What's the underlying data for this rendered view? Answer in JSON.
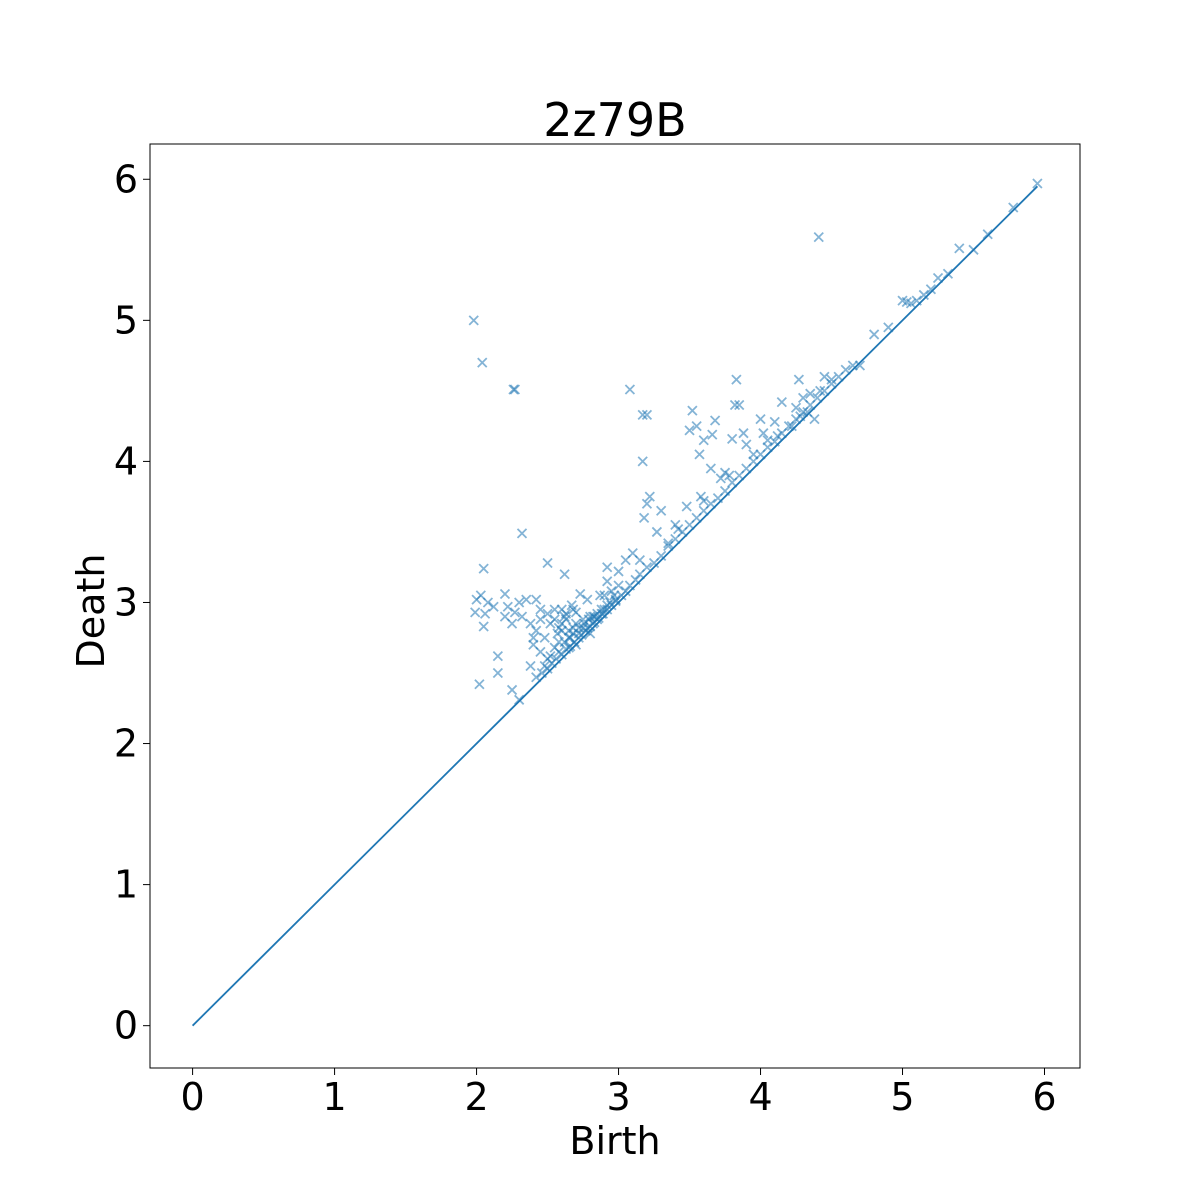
{
  "chart_data": {
    "type": "scatter",
    "title": "2z79B",
    "xlabel": "Birth",
    "ylabel": "Death",
    "xlim": [
      -0.3,
      6.25
    ],
    "ylim": [
      -0.3,
      6.25
    ],
    "xticks": [
      "0",
      "1",
      "2",
      "3",
      "4",
      "5",
      "6"
    ],
    "yticks": [
      "0",
      "1",
      "2",
      "3",
      "4",
      "5",
      "6"
    ],
    "grid": false,
    "marker": "x",
    "color": "#1f77b4",
    "diagonal": {
      "x": [
        0,
        5.95
      ],
      "y": [
        0,
        5.95
      ]
    },
    "points": [
      [
        1.98,
        5.0
      ],
      [
        2.04,
        4.7
      ],
      [
        2.26,
        4.51
      ],
      [
        2.27,
        4.51
      ],
      [
        4.41,
        5.59
      ],
      [
        2.32,
        3.49
      ],
      [
        2.05,
        3.24
      ],
      [
        2.0,
        3.02
      ],
      [
        2.03,
        3.05
      ],
      [
        2.08,
        3.0
      ],
      [
        2.12,
        2.97
      ],
      [
        2.06,
        2.92
      ],
      [
        2.05,
        2.83
      ],
      [
        1.99,
        2.93
      ],
      [
        2.02,
        2.42
      ],
      [
        2.15,
        2.62
      ],
      [
        2.15,
        2.5
      ],
      [
        2.25,
        2.38
      ],
      [
        2.3,
        2.31
      ],
      [
        2.2,
        3.06
      ],
      [
        2.22,
        2.97
      ],
      [
        2.25,
        2.85
      ],
      [
        2.3,
        3.0
      ],
      [
        2.32,
        2.9
      ],
      [
        2.35,
        3.02
      ],
      [
        2.27,
        2.93
      ],
      [
        2.2,
        2.9
      ],
      [
        2.38,
        2.85
      ],
      [
        2.4,
        2.7
      ],
      [
        2.42,
        3.02
      ],
      [
        2.45,
        2.95
      ],
      [
        2.5,
        3.28
      ],
      [
        2.62,
        3.2
      ],
      [
        2.38,
        2.55
      ],
      [
        2.45,
        2.65
      ],
      [
        2.48,
        2.75
      ],
      [
        2.5,
        2.6
      ],
      [
        2.52,
        2.85
      ],
      [
        2.55,
        2.95
      ],
      [
        2.58,
        2.72
      ],
      [
        2.6,
        2.8
      ],
      [
        2.62,
        2.9
      ],
      [
        2.65,
        2.68
      ],
      [
        2.66,
        2.75
      ],
      [
        2.68,
        2.95
      ],
      [
        2.7,
        2.85
      ],
      [
        2.72,
        2.78
      ],
      [
        2.75,
        2.88
      ],
      [
        2.73,
        3.06
      ],
      [
        2.78,
        3.02
      ],
      [
        2.78,
        2.82
      ],
      [
        2.8,
        2.9
      ],
      [
        2.82,
        2.85
      ],
      [
        2.85,
        2.92
      ],
      [
        2.88,
        2.95
      ],
      [
        2.9,
        3.05
      ],
      [
        2.92,
        2.98
      ],
      [
        2.95,
        3.08
      ],
      [
        2.98,
        3.02
      ],
      [
        3.0,
        3.12
      ],
      [
        2.92,
        3.15
      ],
      [
        2.87,
        3.05
      ],
      [
        2.42,
        2.47
      ],
      [
        2.46,
        2.5
      ],
      [
        2.5,
        2.53
      ],
      [
        2.53,
        2.57
      ],
      [
        2.56,
        2.6
      ],
      [
        2.6,
        2.63
      ],
      [
        2.63,
        2.67
      ],
      [
        2.66,
        2.69
      ],
      [
        2.69,
        2.72
      ],
      [
        2.72,
        2.75
      ],
      [
        2.74,
        2.77
      ],
      [
        2.77,
        2.8
      ],
      [
        2.8,
        2.83
      ],
      [
        2.83,
        2.86
      ],
      [
        2.86,
        2.89
      ],
      [
        2.89,
        2.92
      ],
      [
        2.92,
        2.95
      ],
      [
        2.95,
        2.98
      ],
      [
        2.98,
        3.01
      ],
      [
        3.02,
        3.05
      ],
      [
        3.05,
        3.08
      ],
      [
        3.08,
        3.12
      ],
      [
        3.12,
        3.16
      ],
      [
        3.15,
        3.2
      ],
      [
        3.2,
        3.25
      ],
      [
        3.25,
        3.28
      ],
      [
        3.3,
        3.33
      ],
      [
        3.35,
        3.4
      ],
      [
        3.4,
        3.45
      ],
      [
        3.45,
        3.5
      ],
      [
        3.5,
        3.55
      ],
      [
        3.55,
        3.6
      ],
      [
        3.6,
        3.65
      ],
      [
        3.65,
        3.7
      ],
      [
        3.7,
        3.74
      ],
      [
        3.75,
        3.79
      ],
      [
        3.8,
        3.85
      ],
      [
        3.85,
        3.9
      ],
      [
        3.9,
        3.95
      ],
      [
        3.95,
        4.0
      ],
      [
        4.0,
        4.05
      ],
      [
        4.05,
        4.1
      ],
      [
        4.1,
        4.14
      ],
      [
        4.15,
        4.2
      ],
      [
        4.2,
        4.25
      ],
      [
        4.25,
        4.3
      ],
      [
        4.3,
        4.35
      ],
      [
        4.35,
        4.4
      ],
      [
        4.4,
        4.45
      ],
      [
        4.45,
        4.5
      ],
      [
        4.5,
        4.55
      ],
      [
        4.55,
        4.6
      ],
      [
        4.6,
        4.65
      ],
      [
        4.65,
        4.68
      ],
      [
        4.7,
        4.68
      ],
      [
        4.8,
        4.9
      ],
      [
        4.9,
        4.95
      ],
      [
        5.0,
        5.14
      ],
      [
        5.03,
        5.13
      ],
      [
        5.06,
        5.12
      ],
      [
        5.1,
        5.14
      ],
      [
        5.15,
        5.18
      ],
      [
        5.2,
        5.22
      ],
      [
        5.25,
        5.3
      ],
      [
        5.32,
        5.33
      ],
      [
        5.4,
        5.51
      ],
      [
        5.5,
        5.5
      ],
      [
        5.6,
        5.61
      ],
      [
        5.78,
        5.8
      ],
      [
        5.95,
        5.97
      ],
      [
        3.08,
        4.51
      ],
      [
        3.17,
        4.33
      ],
      [
        3.2,
        4.33
      ],
      [
        3.17,
        4.0
      ],
      [
        3.52,
        4.36
      ],
      [
        3.5,
        4.22
      ],
      [
        3.55,
        4.25
      ],
      [
        3.6,
        4.15
      ],
      [
        3.57,
        4.05
      ],
      [
        3.68,
        4.29
      ],
      [
        3.66,
        4.19
      ],
      [
        3.83,
        4.58
      ],
      [
        3.82,
        4.4
      ],
      [
        3.85,
        4.4
      ],
      [
        3.8,
        4.16
      ],
      [
        3.88,
        4.2
      ],
      [
        3.65,
        3.95
      ],
      [
        3.75,
        3.92
      ],
      [
        3.58,
        3.75
      ],
      [
        3.6,
        3.72
      ],
      [
        3.48,
        3.68
      ],
      [
        3.4,
        3.55
      ],
      [
        3.3,
        3.65
      ],
      [
        3.22,
        3.75
      ],
      [
        3.2,
        3.7
      ],
      [
        3.18,
        3.6
      ],
      [
        3.27,
        3.5
      ],
      [
        3.1,
        3.35
      ],
      [
        3.15,
        3.3
      ],
      [
        3.35,
        3.42
      ],
      [
        3.42,
        3.52
      ],
      [
        3.0,
        3.22
      ],
      [
        2.92,
        3.25
      ],
      [
        3.05,
        3.3
      ],
      [
        4.0,
        4.3
      ],
      [
        4.02,
        4.2
      ],
      [
        4.05,
        4.15
      ],
      [
        4.15,
        4.42
      ],
      [
        4.27,
        4.58
      ],
      [
        4.3,
        4.45
      ],
      [
        4.33,
        4.35
      ],
      [
        4.35,
        4.48
      ],
      [
        4.38,
        4.3
      ],
      [
        4.42,
        4.5
      ],
      [
        4.45,
        4.6
      ],
      [
        4.5,
        4.58
      ],
      [
        4.25,
        4.38
      ],
      [
        4.28,
        4.32
      ],
      [
        4.22,
        4.25
      ],
      [
        4.1,
        4.28
      ],
      [
        4.12,
        4.18
      ],
      [
        3.95,
        4.05
      ],
      [
        3.9,
        4.12
      ],
      [
        3.78,
        3.9
      ],
      [
        3.72,
        3.88
      ],
      [
        2.6,
        2.85
      ],
      [
        2.63,
        2.88
      ],
      [
        2.57,
        2.78
      ],
      [
        2.55,
        2.68
      ],
      [
        2.52,
        2.62
      ],
      [
        2.48,
        2.55
      ],
      [
        2.58,
        2.82
      ],
      [
        2.65,
        2.8
      ],
      [
        2.68,
        2.82
      ],
      [
        2.7,
        2.7
      ],
      [
        2.75,
        2.82
      ],
      [
        2.8,
        2.78
      ],
      [
        2.83,
        2.9
      ],
      [
        2.6,
        2.95
      ],
      [
        2.63,
        2.92
      ],
      [
        2.67,
        2.98
      ],
      [
        2.7,
        2.93
      ],
      [
        2.42,
        2.8
      ],
      [
        2.4,
        2.75
      ],
      [
        2.45,
        2.88
      ],
      [
        2.5,
        2.92
      ],
      [
        2.55,
        2.88
      ],
      [
        2.58,
        2.65
      ],
      [
        2.62,
        2.72
      ],
      [
        2.65,
        2.75
      ],
      [
        2.68,
        2.78
      ],
      [
        2.72,
        2.82
      ],
      [
        2.76,
        2.85
      ],
      [
        2.79,
        2.88
      ],
      [
        2.82,
        2.9
      ],
      [
        2.85,
        2.88
      ],
      [
        2.88,
        2.92
      ],
      [
        2.9,
        2.95
      ],
      [
        2.94,
        3.0
      ],
      [
        2.97,
        3.05
      ]
    ]
  }
}
